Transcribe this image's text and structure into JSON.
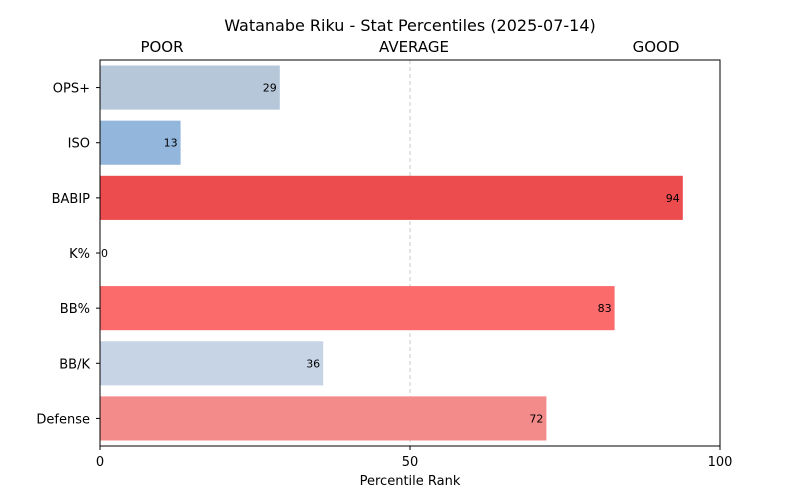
{
  "chart_data": {
    "type": "bar",
    "orientation": "horizontal",
    "title": "Watanabe Riku - Stat Percentiles (2025-07-14)",
    "xlabel": "Percentile Rank",
    "ylabel": "",
    "xlim": [
      0,
      100
    ],
    "xticks": [
      0,
      50,
      100
    ],
    "zone_labels": [
      "POOR",
      "AVERAGE",
      "GOOD"
    ],
    "reference_line": 50,
    "grid": false,
    "categories": [
      "OPS+",
      "ISO",
      "BABIP",
      "K%",
      "BB%",
      "BB/K",
      "Defense"
    ],
    "values": [
      29,
      13,
      94,
      0,
      83,
      36,
      72
    ],
    "colors": [
      "#b6c7da",
      "#93b6dc",
      "#ed4c4e",
      "#e0e0e0",
      "#fb6b6b",
      "#c7d4e6",
      "#f48b8b"
    ]
  }
}
